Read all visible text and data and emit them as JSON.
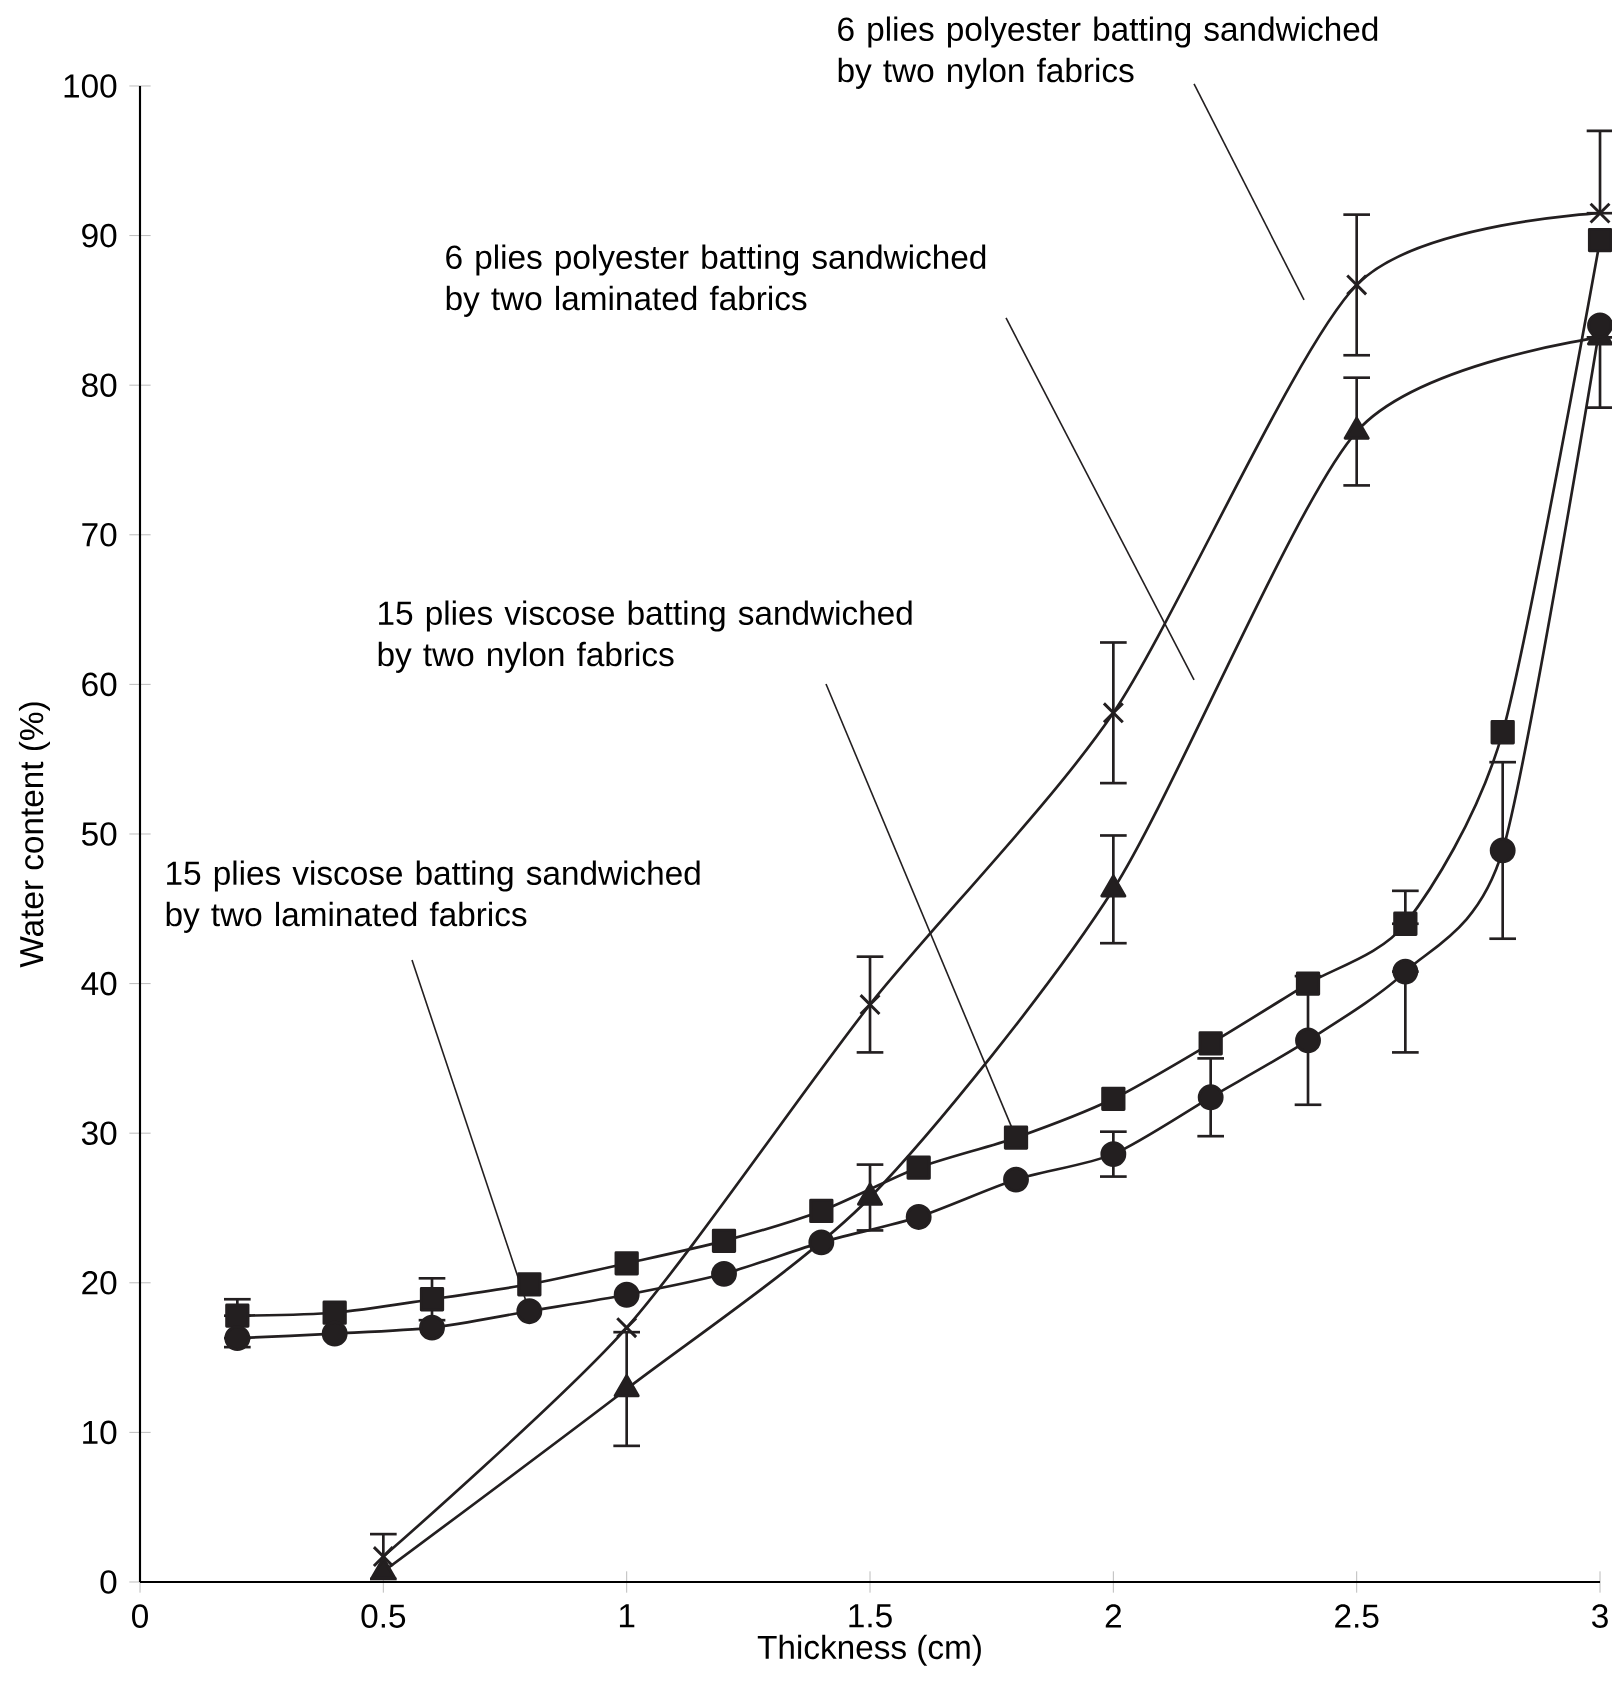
{
  "chart_data": {
    "type": "line",
    "xlabel": "Thickness (cm)",
    "ylabel": "Water content (%)",
    "xlim": [
      0,
      3
    ],
    "ylim": [
      0,
      100
    ],
    "xticks": [
      0,
      0.5,
      1,
      1.5,
      2,
      2.5,
      3
    ],
    "yticks": [
      0,
      10,
      20,
      30,
      40,
      50,
      60,
      70,
      80,
      90,
      100
    ],
    "line_style": "solid",
    "series": [
      {
        "name": "6 plies polyester batting sandwiched by two nylon fabrics",
        "color": "#231f20",
        "marker": "cross",
        "x": [
          0.5,
          1,
          1.5,
          2,
          2.5,
          3
        ],
        "values": [
          1.7,
          17.0,
          38.6,
          58.1,
          86.7,
          91.5
        ],
        "errors": [
          1.5,
          null,
          3.2,
          4.7,
          4.7,
          [
            91.5,
            97
          ]
        ]
      },
      {
        "name": "6 plies polyester batting sandwiched by two laminated fabrics",
        "color": "#231f20",
        "marker": "triangle",
        "x": [
          0.5,
          1,
          1.5,
          2,
          2.5,
          3
        ],
        "values": [
          0.7,
          12.9,
          25.7,
          46.3,
          76.9,
          83.2
        ],
        "errors": [
          null,
          3.8,
          2.2,
          3.6,
          3.6,
          [
            78.5,
            83.2
          ]
        ]
      },
      {
        "name": "15 plies viscose batting sandwiched by two nylon fabrics",
        "color": "#231f20",
        "marker": "square",
        "x": [
          0.2,
          0.4,
          0.6,
          0.8,
          1.0,
          1.2,
          1.4,
          1.6,
          1.8,
          2.0,
          2.2,
          2.4,
          2.6,
          2.8,
          3.0
        ],
        "values": [
          17.8,
          18.0,
          18.9,
          19.9,
          21.3,
          22.8,
          24.8,
          27.7,
          29.7,
          32.3,
          36.0,
          40.0,
          44.0,
          56.8,
          89.7
        ],
        "errors": [
          [
            17.8,
            18.9
          ],
          null,
          1.4,
          null,
          null,
          null,
          null,
          null,
          null,
          null,
          null,
          null,
          [
            44.0,
            46.2
          ],
          null,
          null
        ]
      },
      {
        "name": "15 plies viscose batting sandwiched by two laminated fabrics",
        "color": "#231f20",
        "marker": "circle",
        "x": [
          0.2,
          0.4,
          0.6,
          0.8,
          1.0,
          1.2,
          1.4,
          1.6,
          1.8,
          2.0,
          2.2,
          2.4,
          2.6,
          2.8,
          3.0
        ],
        "values": [
          16.3,
          16.6,
          17.0,
          18.1,
          19.2,
          20.6,
          22.7,
          24.4,
          26.9,
          28.6,
          32.4,
          36.2,
          40.8,
          48.9,
          84.0
        ],
        "errors": [
          [
            15.7,
            16.3
          ],
          null,
          null,
          null,
          null,
          null,
          null,
          null,
          null,
          1.5,
          2.6,
          4.3,
          [
            35.4,
            40.8
          ],
          5.9,
          null
        ]
      }
    ]
  }
}
